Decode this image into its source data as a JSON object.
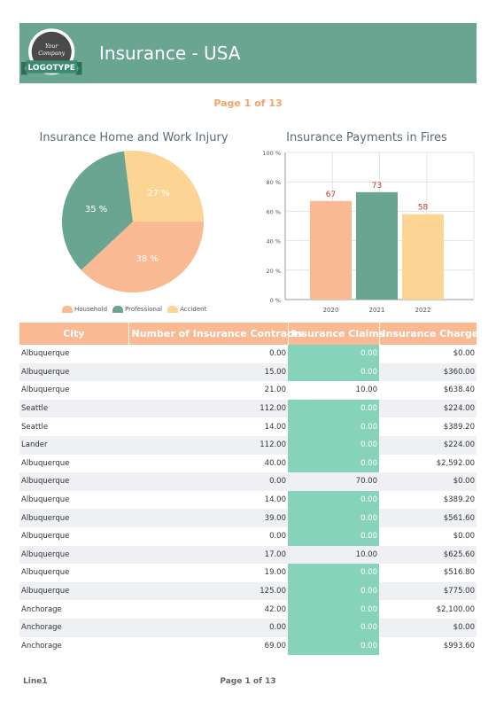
{
  "header": {
    "title": "Insurance - USA",
    "logo_text_top": "Your",
    "logo_text_mid": "Company",
    "logo_ribbon": "LOGOTYPE",
    "bg_color": "#6aa592"
  },
  "page_top": "Page 1 of 13",
  "pie": {
    "title": "Insurance Home and Work Injury",
    "chart_data": {
      "type": "pie",
      "slices": [
        {
          "label": "Household",
          "value": 38,
          "display": "38 %",
          "color": "#f9b992"
        },
        {
          "label": "Professional",
          "value": 35,
          "display": "35 %",
          "color": "#6aa592"
        },
        {
          "label": "Accident",
          "value": 27,
          "display": "27 %",
          "color": "#fcd494"
        }
      ]
    }
  },
  "bar": {
    "title": "Insurance Payments in Fires",
    "chart_data": {
      "type": "bar",
      "categories": [
        "2020",
        "2021",
        "2022"
      ],
      "values": [
        67,
        73,
        58
      ],
      "colors": [
        "#f9b992",
        "#6aa592",
        "#fcd494"
      ],
      "ylim": [
        0,
        100
      ],
      "yticks": [
        "0 %",
        "20 %",
        "40 %",
        "60 %",
        "80 %",
        "100 %"
      ],
      "grid": true
    }
  },
  "table": {
    "headers": [
      "City",
      "Number of Insurance Contracts",
      "Insurance Claims",
      "Insurance Charges"
    ],
    "rows": [
      [
        "Albuquerque",
        "0.00",
        "0.00",
        "$0.00"
      ],
      [
        "Albuquerque",
        "15.00",
        "0.00",
        "$360.00"
      ],
      [
        "Albuquerque",
        "21.00",
        "10.00",
        "$638.40"
      ],
      [
        "Seattle",
        "112.00",
        "0.00",
        "$224.00"
      ],
      [
        "Seattle",
        "14.00",
        "0.00",
        "$389.20"
      ],
      [
        "Lander",
        "112.00",
        "0.00",
        "$224.00"
      ],
      [
        "Albuquerque",
        "40.00",
        "0.00",
        "$2,592.00"
      ],
      [
        "Albuquerque",
        "0.00",
        "70.00",
        "$0.00"
      ],
      [
        "Albuquerque",
        "14.00",
        "0.00",
        "$389.20"
      ],
      [
        "Albuquerque",
        "39.00",
        "0.00",
        "$561.60"
      ],
      [
        "Albuquerque",
        "0.00",
        "0.00",
        "$0.00"
      ],
      [
        "Albuquerque",
        "17.00",
        "10.00",
        "$625.60"
      ],
      [
        "Albuquerque",
        "19.00",
        "0.00",
        "$516.80"
      ],
      [
        "Albuquerque",
        "125.00",
        "0.00",
        "$775.00"
      ],
      [
        "Anchorage",
        "42.00",
        "0.00",
        "$2,100.00"
      ],
      [
        "Anchorage",
        "0.00",
        "0.00",
        "$0.00"
      ],
      [
        "Anchorage",
        "69.00",
        "0.00",
        "$993.60"
      ]
    ]
  },
  "footer": {
    "left": "Line1",
    "center": "Page 1 of 13"
  }
}
